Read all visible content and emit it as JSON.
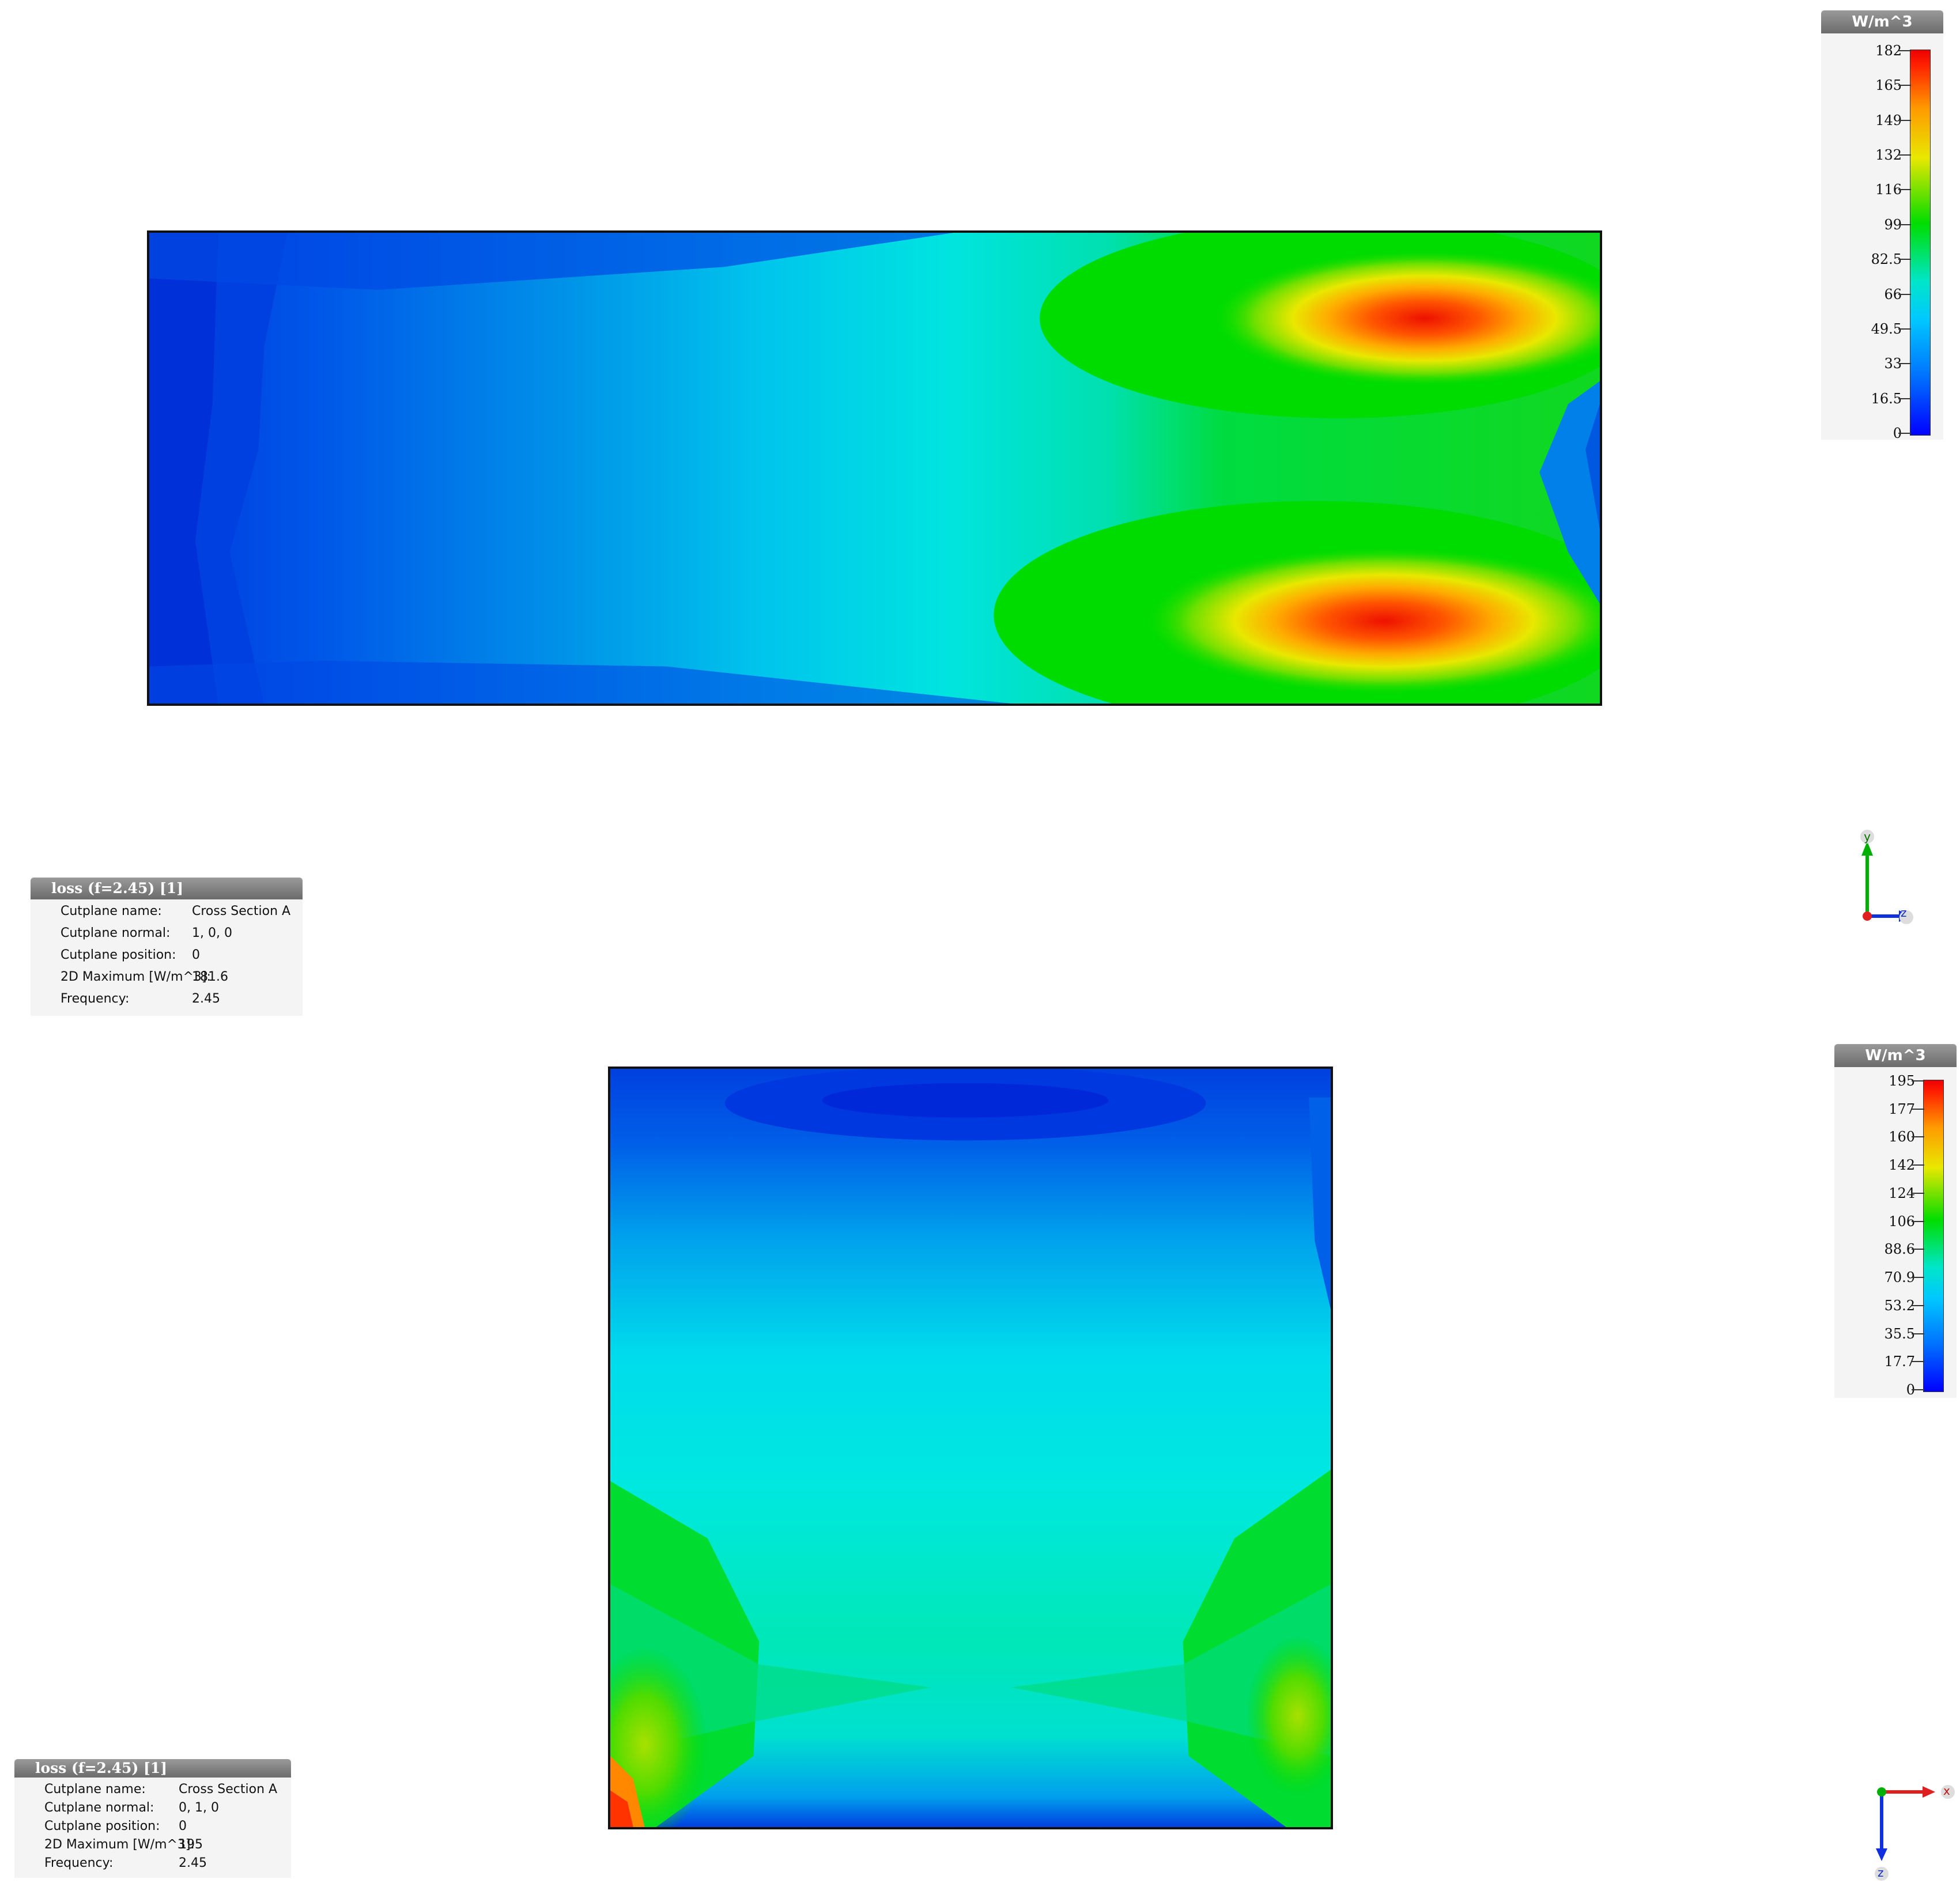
{
  "top_view": {
    "legend": {
      "unit": "W/m^3",
      "ticks": [
        "182",
        "165",
        "149",
        "132",
        "116",
        "99",
        "82.5",
        "66",
        "49.5",
        "33",
        "16.5",
        "0"
      ]
    },
    "info": {
      "title": "loss (f=2.45) [1]",
      "rows": [
        {
          "key": "Cutplane name:",
          "value": "Cross Section A"
        },
        {
          "key": "Cutplane normal:",
          "value": "1, 0, 0"
        },
        {
          "key": "Cutplane position:",
          "value": "0"
        },
        {
          "key": "2D Maximum [W/m^3]:",
          "value": "181.6"
        },
        {
          "key": "Frequency:",
          "value": "2.45"
        }
      ]
    },
    "axes": {
      "vertical": "y",
      "horizontal": "z"
    }
  },
  "bottom_view": {
    "legend": {
      "unit": "W/m^3",
      "ticks": [
        "195",
        "177",
        "160",
        "142",
        "124",
        "106",
        "88.6",
        "70.9",
        "53.2",
        "35.5",
        "17.7",
        "0"
      ]
    },
    "info": {
      "title": "loss (f=2.45) [1]",
      "rows": [
        {
          "key": "Cutplane name:",
          "value": "Cross Section A"
        },
        {
          "key": "Cutplane normal:",
          "value": "0, 1, 0"
        },
        {
          "key": "Cutplane position:",
          "value": "0"
        },
        {
          "key": "2D Maximum [W/m^3]:",
          "value": "195"
        },
        {
          "key": "Frequency:",
          "value": "2.45"
        }
      ]
    },
    "axes": {
      "vertical": "z",
      "horizontal": "x"
    }
  },
  "colors": {
    "blue": "#0040e8",
    "cyan": "#00e0e0",
    "green": "#00dd00",
    "yellow": "#e8e800",
    "red": "#ff2200"
  }
}
